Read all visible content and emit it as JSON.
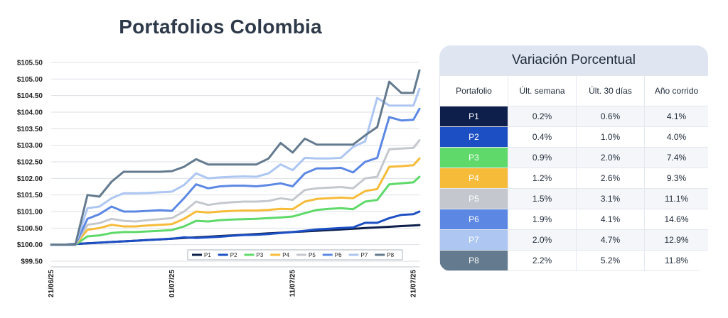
{
  "chart_data": {
    "type": "line",
    "title": "Portafolios Colombia",
    "y_tick_labels": [
      "$99.50",
      "$100.00",
      "$100.50",
      "$101.00",
      "$101.50",
      "$102.00",
      "$102.50",
      "$103.00",
      "$103.50",
      "$104.00",
      "$104.50",
      "$105.00",
      "$105.50"
    ],
    "y_ticks": [
      99.5,
      100.0,
      100.5,
      101.0,
      101.5,
      102.0,
      102.5,
      103.0,
      103.5,
      104.0,
      104.5,
      105.0,
      105.5
    ],
    "ylim": [
      99.5,
      105.5
    ],
    "x_tick_labels": [
      "21/06/25",
      "01/07/25",
      "11/07/25",
      "21/07/25"
    ],
    "x_tick_days": [
      0,
      10,
      20,
      30
    ],
    "x": [
      0,
      1,
      2,
      3,
      4,
      5,
      6,
      7,
      8,
      9,
      10,
      11,
      12,
      13,
      14,
      15,
      16,
      17,
      18,
      19,
      20,
      21,
      22,
      23,
      24,
      25,
      26,
      27,
      28,
      29,
      30,
      30.5
    ],
    "grid": "horizontal",
    "legend_position": "bottom-right",
    "series": [
      {
        "name": "P1",
        "color": "#0d1f4a",
        "values": [
          100.0,
          100.0,
          100.02,
          100.04,
          100.06,
          100.08,
          100.1,
          100.12,
          100.14,
          100.16,
          100.18,
          100.2,
          100.22,
          100.24,
          100.26,
          100.28,
          100.3,
          100.32,
          100.34,
          100.36,
          100.38,
          100.4,
          100.42,
          100.44,
          100.46,
          100.48,
          100.5,
          100.52,
          100.54,
          100.56,
          100.58,
          100.59
        ]
      },
      {
        "name": "P2",
        "color": "#1d4fc4",
        "values": [
          100.0,
          100.0,
          100.02,
          100.04,
          100.06,
          100.08,
          100.1,
          100.12,
          100.14,
          100.16,
          100.18,
          100.22,
          100.2,
          100.22,
          100.24,
          100.27,
          100.29,
          100.3,
          100.32,
          100.35,
          100.38,
          100.42,
          100.46,
          100.48,
          100.5,
          100.52,
          100.66,
          100.66,
          100.8,
          100.9,
          100.92,
          101.0
        ]
      },
      {
        "name": "P3",
        "color": "#5fd96a",
        "values": [
          100.0,
          100.0,
          100.0,
          100.25,
          100.28,
          100.35,
          100.38,
          100.38,
          100.4,
          100.42,
          100.44,
          100.55,
          100.72,
          100.7,
          100.74,
          100.76,
          100.77,
          100.78,
          100.8,
          100.82,
          100.85,
          100.95,
          101.05,
          101.08,
          101.1,
          101.07,
          101.3,
          101.35,
          101.82,
          101.85,
          101.88,
          102.05
        ]
      },
      {
        "name": "P4",
        "color": "#f7bb3a",
        "values": [
          100.0,
          100.0,
          100.0,
          100.45,
          100.5,
          100.6,
          100.55,
          100.55,
          100.58,
          100.6,
          100.62,
          100.78,
          101.0,
          100.97,
          101.0,
          101.02,
          101.03,
          101.03,
          101.05,
          101.08,
          101.07,
          101.3,
          101.38,
          101.4,
          101.42,
          101.4,
          101.62,
          101.68,
          102.35,
          102.37,
          102.4,
          102.6
        ]
      },
      {
        "name": "P5",
        "color": "#c4c8ce",
        "values": [
          100.0,
          100.0,
          100.0,
          100.6,
          100.65,
          100.78,
          100.72,
          100.7,
          100.74,
          100.77,
          100.8,
          101.0,
          101.3,
          101.2,
          101.25,
          101.28,
          101.3,
          101.3,
          101.32,
          101.4,
          101.35,
          101.65,
          101.7,
          101.72,
          101.74,
          101.7,
          102.0,
          102.05,
          102.88,
          102.9,
          102.92,
          103.15
        ]
      },
      {
        "name": "P6",
        "color": "#5c88e4",
        "values": [
          100.0,
          100.0,
          100.0,
          100.78,
          100.92,
          101.15,
          101.0,
          101.0,
          101.02,
          101.04,
          101.02,
          101.4,
          101.82,
          101.7,
          101.76,
          101.78,
          101.78,
          101.76,
          101.8,
          101.85,
          101.76,
          102.15,
          102.3,
          102.3,
          102.32,
          102.18,
          102.5,
          102.62,
          103.85,
          103.75,
          103.77,
          104.1
        ]
      },
      {
        "name": "P7",
        "color": "#adc6f2",
        "values": [
          100.0,
          100.0,
          100.0,
          101.1,
          101.15,
          101.4,
          101.55,
          101.55,
          101.56,
          101.58,
          101.6,
          101.8,
          102.15,
          102.0,
          102.03,
          102.05,
          102.06,
          102.05,
          102.15,
          102.42,
          102.25,
          102.62,
          102.6,
          102.6,
          102.62,
          102.95,
          103.12,
          104.43,
          104.2,
          104.2,
          104.2,
          104.7
        ]
      },
      {
        "name": "P8",
        "color": "#647a8e",
        "values": [
          100.0,
          100.0,
          100.0,
          101.5,
          101.45,
          101.9,
          102.2,
          102.2,
          102.2,
          102.2,
          102.22,
          102.35,
          102.58,
          102.42,
          102.42,
          102.42,
          102.42,
          102.42,
          102.6,
          103.07,
          102.78,
          103.2,
          103.02,
          103.02,
          103.02,
          103.02,
          103.3,
          103.55,
          104.92,
          104.58,
          104.58,
          105.26
        ]
      }
    ]
  },
  "table": {
    "title": "Variación Porcentual",
    "headers": [
      "Portafolio",
      "Últ. semana",
      "Últ. 30 días",
      "Año corrido"
    ],
    "rows": [
      {
        "portfolio": "P1",
        "color": "#0d1f4a",
        "week": "0.2%",
        "month": "0.6%",
        "ytd": "4.1%"
      },
      {
        "portfolio": "P2",
        "color": "#1d4fc4",
        "week": "0.4%",
        "month": "1.0%",
        "ytd": "4.0%"
      },
      {
        "portfolio": "P3",
        "color": "#5fd96a",
        "week": "0.9%",
        "month": "2.0%",
        "ytd": "7.4%"
      },
      {
        "portfolio": "P4",
        "color": "#f7bb3a",
        "week": "1.2%",
        "month": "2.6%",
        "ytd": "9.3%"
      },
      {
        "portfolio": "P5",
        "color": "#c4c8ce",
        "week": "1.5%",
        "month": "3.1%",
        "ytd": "11.1%"
      },
      {
        "portfolio": "P6",
        "color": "#5c88e4",
        "week": "1.9%",
        "month": "4.1%",
        "ytd": "14.6%"
      },
      {
        "portfolio": "P7",
        "color": "#adc6f2",
        "week": "2.0%",
        "month": "4.7%",
        "ytd": "12.9%"
      },
      {
        "portfolio": "P8",
        "color": "#647a8e",
        "week": "2.2%",
        "month": "5.2%",
        "ytd": "11.8%"
      }
    ]
  }
}
